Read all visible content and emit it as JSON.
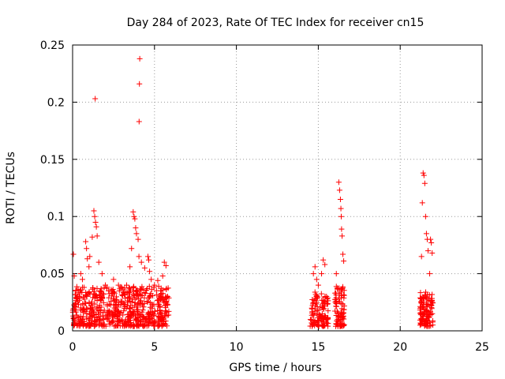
{
  "chart_data": {
    "type": "scatter",
    "title": "Day 284 of 2023, Rate Of TEC Index for receiver cn15",
    "xlabel": "GPS time / hours",
    "ylabel": "ROTI / TECUs",
    "xlim": [
      0,
      25
    ],
    "ylim": [
      0,
      0.25
    ],
    "xticks": [
      0,
      5,
      10,
      15,
      20,
      25
    ],
    "xtick_labels": [
      "0",
      "5",
      "10",
      "15",
      "20",
      "25"
    ],
    "yticks": [
      0,
      0.05,
      0.1,
      0.15,
      0.2,
      0.25
    ],
    "ytick_labels": [
      "0",
      "0.05",
      "0.1",
      "0.15",
      "0.2",
      "0.25"
    ],
    "grid": true,
    "marker": "+",
    "series_color": "#ff0000",
    "series": [
      {
        "name": "ROTI",
        "points": [
          [
            0.05,
            0.067
          ],
          [
            0.1,
            0.048
          ],
          [
            0.2,
            0.035
          ],
          [
            0.3,
            0.03
          ],
          [
            0.5,
            0.05
          ],
          [
            0.6,
            0.045
          ],
          [
            0.7,
            0.038
          ],
          [
            0.8,
            0.078
          ],
          [
            0.85,
            0.072
          ],
          [
            0.9,
            0.063
          ],
          [
            1.0,
            0.056
          ],
          [
            1.05,
            0.065
          ],
          [
            1.2,
            0.082
          ],
          [
            1.3,
            0.105
          ],
          [
            1.35,
            0.1
          ],
          [
            1.4,
            0.095
          ],
          [
            1.45,
            0.091
          ],
          [
            1.38,
            0.203
          ],
          [
            1.5,
            0.083
          ],
          [
            1.6,
            0.06
          ],
          [
            1.8,
            0.05
          ],
          [
            2.0,
            0.04
          ],
          [
            2.2,
            0.035
          ],
          [
            2.5,
            0.045
          ],
          [
            2.8,
            0.04
          ],
          [
            3.0,
            0.038
          ],
          [
            3.3,
            0.04
          ],
          [
            3.5,
            0.056
          ],
          [
            3.6,
            0.072
          ],
          [
            3.7,
            0.104
          ],
          [
            3.75,
            0.1
          ],
          [
            3.8,
            0.098
          ],
          [
            3.85,
            0.09
          ],
          [
            3.9,
            0.085
          ],
          [
            4.0,
            0.08
          ],
          [
            4.05,
            0.065
          ],
          [
            4.1,
            0.238
          ],
          [
            4.08,
            0.216
          ],
          [
            4.06,
            0.183
          ],
          [
            4.2,
            0.06
          ],
          [
            4.4,
            0.055
          ],
          [
            4.6,
            0.065
          ],
          [
            4.65,
            0.062
          ],
          [
            4.7,
            0.052
          ],
          [
            4.8,
            0.045
          ],
          [
            5.0,
            0.04
          ],
          [
            5.2,
            0.044
          ],
          [
            5.5,
            0.048
          ],
          [
            5.6,
            0.06
          ],
          [
            5.7,
            0.057
          ],
          [
            5.8,
            0.03
          ],
          [
            14.7,
            0.05
          ],
          [
            14.8,
            0.056
          ],
          [
            14.9,
            0.045
          ],
          [
            15.0,
            0.04
          ],
          [
            15.2,
            0.05
          ],
          [
            15.3,
            0.062
          ],
          [
            15.4,
            0.058
          ],
          [
            15.5,
            0.03
          ],
          [
            16.1,
            0.05
          ],
          [
            16.25,
            0.13
          ],
          [
            16.3,
            0.123
          ],
          [
            16.35,
            0.115
          ],
          [
            16.38,
            0.107
          ],
          [
            16.4,
            0.1
          ],
          [
            16.42,
            0.089
          ],
          [
            16.45,
            0.083
          ],
          [
            16.5,
            0.067
          ],
          [
            16.55,
            0.061
          ],
          [
            21.3,
            0.065
          ],
          [
            21.35,
            0.112
          ],
          [
            21.4,
            0.138
          ],
          [
            21.45,
            0.136
          ],
          [
            21.5,
            0.129
          ],
          [
            21.55,
            0.1
          ],
          [
            21.6,
            0.085
          ],
          [
            21.65,
            0.08
          ],
          [
            21.7,
            0.07
          ],
          [
            21.8,
            0.05
          ],
          [
            21.85,
            0.08
          ],
          [
            21.9,
            0.077
          ],
          [
            21.95,
            0.068
          ]
        ],
        "dense_bands": [
          {
            "x_range": [
              0,
              5.9
            ],
            "y_range": [
              0,
              0.035
            ],
            "count": 650
          },
          {
            "x_range": [
              14.5,
              15.6
            ],
            "y_range": [
              0,
              0.03
            ],
            "count": 120
          },
          {
            "x_range": [
              16.0,
              16.6
            ],
            "y_range": [
              0,
              0.035
            ],
            "count": 90
          },
          {
            "x_range": [
              21.2,
              22.0
            ],
            "y_range": [
              0,
              0.03
            ],
            "count": 120
          }
        ]
      }
    ]
  }
}
